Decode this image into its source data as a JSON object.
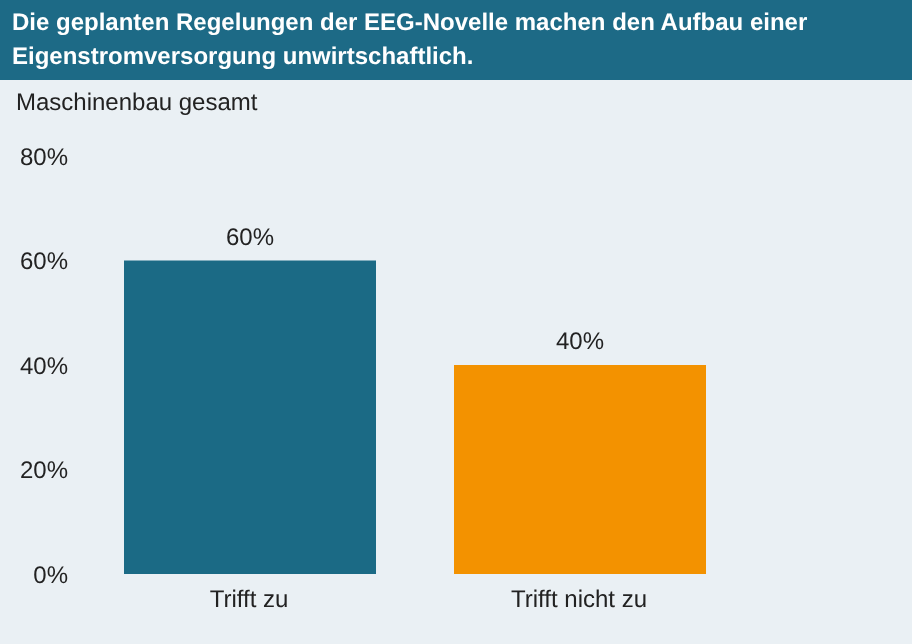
{
  "chart_data": {
    "type": "bar",
    "title": "Die geplanten Regelungen der EEG-Novelle machen den Aufbau einer Eigenstromversorgung unwirtschaftlich.",
    "subtitle": "Maschinenbau gesamt",
    "categories": [
      "Trifft zu",
      "Trifft nicht zu"
    ],
    "values": [
      60,
      40
    ],
    "colors": [
      "#1b6a85",
      "#f39200"
    ],
    "value_labels": [
      "60%",
      "40%"
    ],
    "ylim": [
      0,
      80
    ],
    "yticks": [
      {
        "value": 0,
        "label": "0%"
      },
      {
        "value": 20,
        "label": "20%"
      },
      {
        "value": 40,
        "label": "40%"
      },
      {
        "value": 60,
        "label": "60%"
      },
      {
        "value": 80,
        "label": "80%"
      }
    ],
    "grid": false
  }
}
